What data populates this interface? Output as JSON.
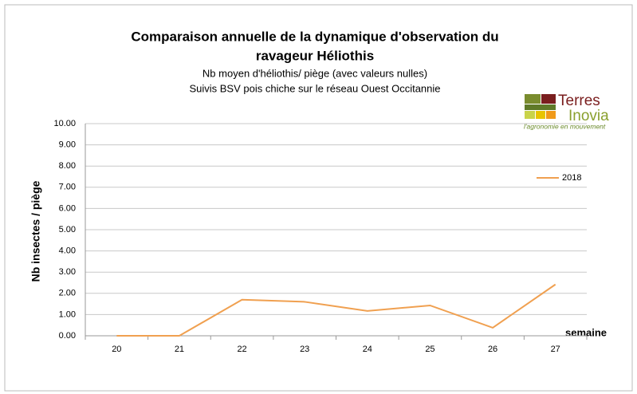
{
  "chart_data": {
    "type": "line",
    "title": [
      "Comparaison annuelle de la dynamique d'observation du",
      "ravageur Héliothis"
    ],
    "subtitle": [
      "Nb moyen d'héliothis/ piège (avec valeurs nulles)",
      "Suivis BSV pois chiche sur le réseau Ouest Occitannie"
    ],
    "y_label": "Nb insectes / piège",
    "x_label": "semaine",
    "categories": [
      "20",
      "21",
      "22",
      "23",
      "24",
      "25",
      "26",
      "27"
    ],
    "series": [
      {
        "name": "2018",
        "color": "#f0a050",
        "values": [
          0,
          0,
          1.7,
          1.6,
          1.17,
          1.43,
          0.38,
          2.42
        ]
      }
    ],
    "ylim": [
      0,
      10
    ],
    "yticks": [
      {
        "value": 0,
        "label": "0.00"
      },
      {
        "value": 1,
        "label": "1.00"
      },
      {
        "value": 2,
        "label": "2.00"
      },
      {
        "value": 3,
        "label": "3.00"
      },
      {
        "value": 4,
        "label": "4.00"
      },
      {
        "value": 5,
        "label": "5.00"
      },
      {
        "value": 6,
        "label": "6.00"
      },
      {
        "value": 7,
        "label": "7.00"
      },
      {
        "value": 8,
        "label": "8.00"
      },
      {
        "value": 9,
        "label": "9.00"
      },
      {
        "value": 10,
        "label": "10.00"
      }
    ],
    "grid": true,
    "legend": "right"
  },
  "logo": {
    "name1": "Terres",
    "name2": "Inovia",
    "tagline": "l'agronomie en mouvement"
  }
}
